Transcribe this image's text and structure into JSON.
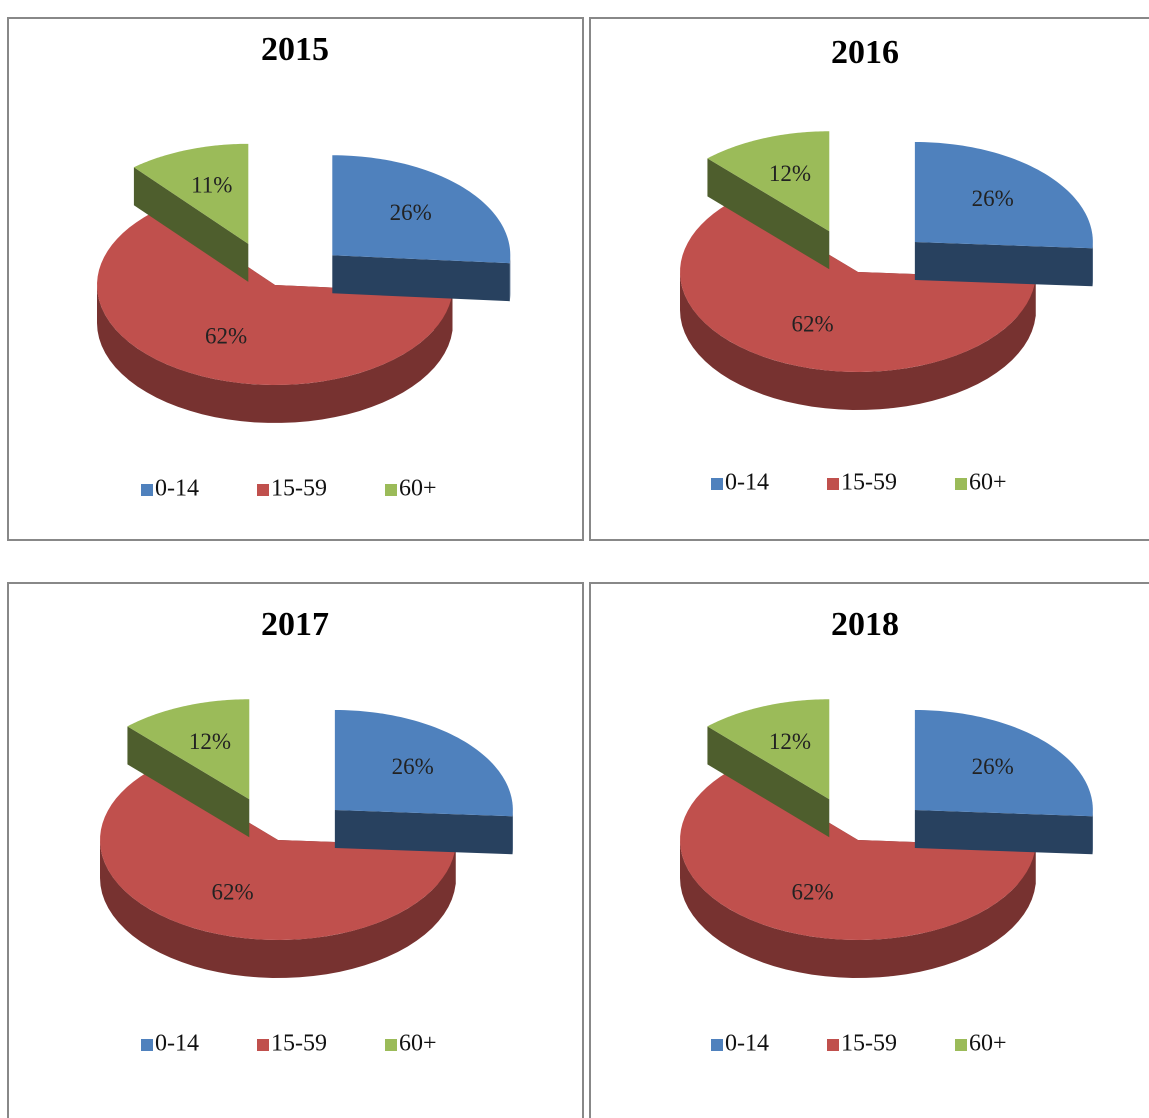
{
  "chart_data": [
    {
      "type": "pie",
      "title": "2015",
      "categories": [
        "0-14",
        "15-59",
        "60+"
      ],
      "values": [
        26,
        62,
        11
      ],
      "value_labels": [
        "26%",
        "62%",
        "11%"
      ],
      "colors": [
        "#4f81bd",
        "#c0504d",
        "#9bbb59"
      ],
      "legend": "bottom"
    },
    {
      "type": "pie",
      "title": "2016",
      "categories": [
        "0-14",
        "15-59",
        "60+"
      ],
      "values": [
        26,
        62,
        12
      ],
      "value_labels": [
        "26%",
        "62%",
        "12%"
      ],
      "colors": [
        "#4f81bd",
        "#c0504d",
        "#9bbb59"
      ],
      "legend": "bottom"
    },
    {
      "type": "pie",
      "title": "2017",
      "categories": [
        "0-14",
        "15-59",
        "60+"
      ],
      "values": [
        26,
        62,
        12
      ],
      "value_labels": [
        "26%",
        "62%",
        "12%"
      ],
      "colors": [
        "#4f81bd",
        "#c0504d",
        "#9bbb59"
      ],
      "legend": "bottom"
    },
    {
      "type": "pie",
      "title": "2018",
      "categories": [
        "0-14",
        "15-59",
        "60+"
      ],
      "values": [
        26,
        62,
        12
      ],
      "value_labels": [
        "26%",
        "62%",
        "12%"
      ],
      "colors": [
        "#4f81bd",
        "#c0504d",
        "#9bbb59"
      ],
      "legend": "bottom"
    }
  ]
}
